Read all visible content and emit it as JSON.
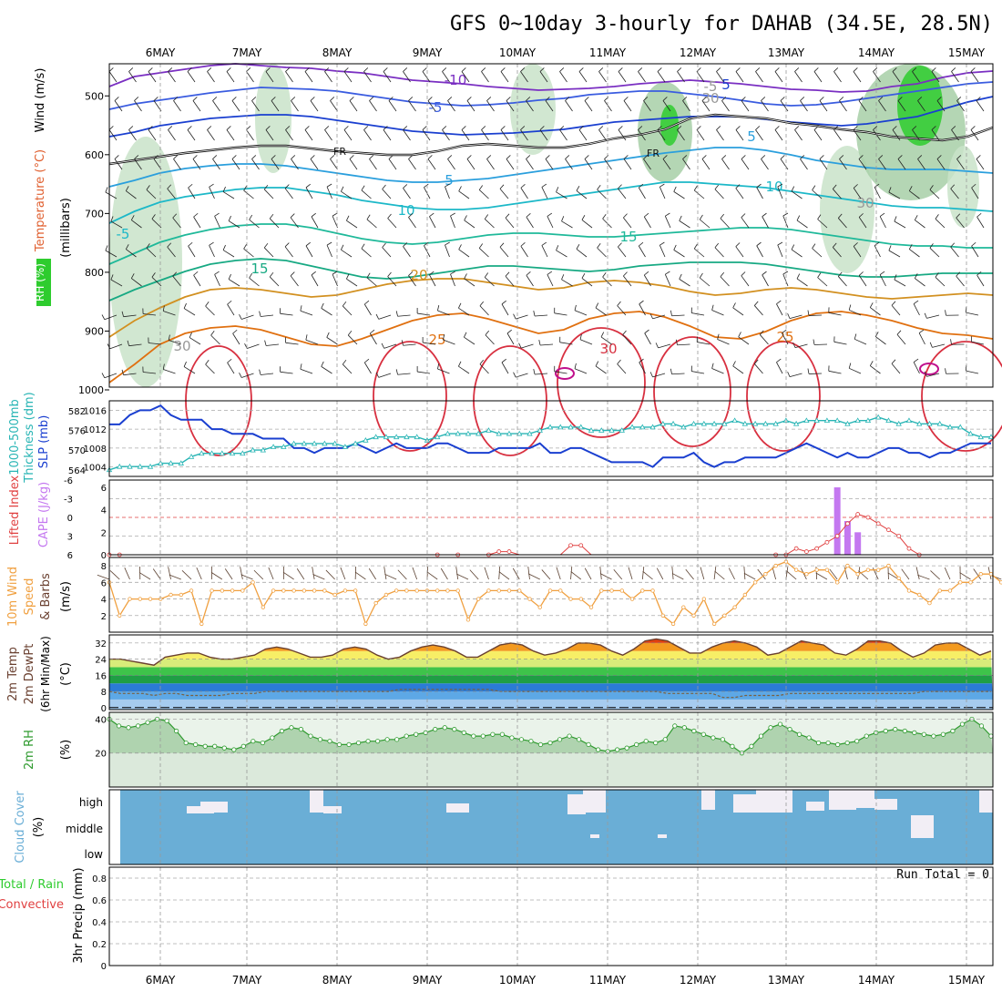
{
  "title": "GFS 0~10day 3-hourly for DAHAB (34.5E, 28.5N)",
  "dates": [
    "6MAY",
    "7MAY",
    "8MAY",
    "9MAY",
    "10MAY",
    "11MAY",
    "12MAY",
    "13MAY",
    "14MAY",
    "15MAY"
  ],
  "colors": {
    "rh_fill": "#c9e3c9",
    "rh_fill2": "#a7cfa7",
    "rh_green": "#2ecc2e",
    "slp": "#1a3fd0",
    "thick": "#29b5b5",
    "cape": "#c478f0",
    "li": "#e04040",
    "wind": "#f0a040",
    "cloud": "#6aaed6",
    "rh2m": "#2e9a2e"
  },
  "panels": {
    "upper": {
      "label_rh": "RH (%)",
      "label_temp": "Temperature (°C)",
      "label_wind": "Wind (m/s)",
      "label_mb": "(millibars)",
      "yticks": [
        "500",
        "600",
        "700",
        "800",
        "900",
        "1000"
      ],
      "contour_labels": [
        "-10",
        "-5",
        "5",
        "FR",
        "FR",
        "-5",
        "5",
        "10",
        "15",
        "15",
        "20",
        "25",
        "30",
        "25",
        "5",
        "10",
        "30",
        "30",
        "30",
        "-5"
      ]
    },
    "slp": {
      "label_left": "1000-500mb",
      "label_left2": "Thickness (dm)",
      "label_right": "SLP (mb)",
      "yticks_left": [
        "582",
        "576",
        "570",
        "564"
      ],
      "yticks_right": [
        "1016",
        "1012",
        "1008",
        "1004"
      ]
    },
    "cape": {
      "label_left": "Lifted Index",
      "label_right": "CAPE (J/kg)",
      "yticks_left": [
        "-6",
        "-3",
        "0",
        "3",
        "6"
      ],
      "yticks_right": [
        "6",
        "4",
        "2",
        "0"
      ]
    },
    "wind": {
      "label1": "10m Wind",
      "label2": "Speed",
      "label3": "& Barbs",
      "label_unit": "(m/s)",
      "yticks": [
        "8",
        "6",
        "4",
        "2"
      ]
    },
    "temp": {
      "label1": "2m Temp",
      "label2": "2m DewPt",
      "label3": "(6hr Min/Max)",
      "label_unit": "(°C)",
      "yticks": [
        "32",
        "24",
        "16",
        "8",
        "0"
      ]
    },
    "rh": {
      "label1": "2m RH",
      "label_unit": "(%)",
      "yticks": [
        "40",
        "20"
      ]
    },
    "cloud": {
      "label1": "Cloud Cover",
      "label_unit": "(%)",
      "levels": [
        "high",
        "middle",
        "low"
      ]
    },
    "precip": {
      "label1": "Total / Rain",
      "label2": "Convective",
      "label3": "3hr Precip (mm)",
      "yticks": [
        "0.8",
        "0.6",
        "0.4",
        "0.2",
        "0"
      ],
      "run_total": "Run Total = 0"
    }
  },
  "chart_data": [
    {
      "type": "line",
      "title": "1000-500mb Thickness (dm) / SLP (mb)",
      "x_unit": "3-hourly steps from 5MAY 12Z",
      "series": [
        {
          "name": "SLP (mb)",
          "values": [
            1013,
            1013,
            1015,
            1016,
            1016,
            1017,
            1015,
            1014,
            1014,
            1014,
            1012,
            1012,
            1011,
            1011,
            1011,
            1010,
            1010,
            1010,
            1008,
            1008,
            1007,
            1008,
            1008,
            1008,
            1009,
            1008,
            1007,
            1008,
            1009,
            1008,
            1008,
            1008,
            1009,
            1009,
            1008,
            1007,
            1007,
            1007,
            1008,
            1008,
            1008,
            1008,
            1009,
            1007,
            1007,
            1008,
            1008,
            1007,
            1006,
            1005,
            1005,
            1005,
            1005,
            1004,
            1006,
            1006,
            1006,
            1007,
            1005,
            1004,
            1005,
            1005,
            1006,
            1006,
            1006,
            1006,
            1007,
            1008,
            1009,
            1008,
            1007,
            1006,
            1007,
            1006,
            1006,
            1007,
            1008,
            1008,
            1007,
            1007,
            1006,
            1007,
            1007,
            1008,
            1009,
            1009,
            1009
          ]
        },
        {
          "name": "1000-500mb Thickness (dm)",
          "values": [
            564,
            565,
            565,
            565,
            565,
            566,
            566,
            566,
            568,
            569,
            569,
            569,
            569,
            569,
            570,
            570,
            571,
            571,
            572,
            572,
            572,
            572,
            572,
            571,
            572,
            573,
            574,
            574,
            574,
            574,
            574,
            573,
            574,
            575,
            575,
            575,
            575,
            576,
            575,
            575,
            575,
            575,
            576,
            577,
            577,
            577,
            577,
            576,
            576,
            576,
            576,
            577,
            577,
            577,
            578,
            578,
            577,
            578,
            578,
            578,
            578,
            579,
            578,
            578,
            578,
            578,
            579,
            578,
            579,
            579,
            579,
            579,
            578,
            579,
            579,
            580,
            579,
            578,
            579,
            578,
            578,
            578,
            577,
            577,
            575,
            574,
            574
          ]
        }
      ]
    },
    {
      "type": "bar",
      "title": "CAPE (J/kg) / Lifted Index",
      "series": [
        {
          "name": "CAPE (J/kg)",
          "x_steps": [
            71,
            72,
            73
          ],
          "values": [
            6,
            3,
            2
          ]
        },
        {
          "name": "Lifted Index",
          "values": [
            6,
            6.5,
            7,
            7,
            7,
            7,
            7,
            7,
            7,
            7,
            7,
            7,
            7,
            7,
            7,
            7,
            7,
            7,
            7,
            7,
            7,
            7,
            7,
            7,
            7,
            7,
            7,
            7,
            7,
            7,
            7,
            7,
            6.5,
            7,
            6.5,
            7,
            7,
            6.5,
            5.5,
            5.5,
            7,
            7,
            7,
            7,
            7,
            4.5,
            4.5,
            7,
            7,
            7,
            7,
            7,
            7,
            7,
            7,
            7,
            7,
            7,
            7,
            7,
            7,
            7,
            7,
            7,
            7,
            6.5,
            6,
            5,
            5.5,
            5,
            4,
            3,
            1,
            -0.5,
            0,
            1,
            2,
            3,
            5,
            6
          ]
        }
      ]
    },
    {
      "type": "line",
      "title": "10m Wind Speed (m/s)",
      "values": [
        6,
        2,
        4,
        4,
        4,
        4,
        4.5,
        4.5,
        5,
        1,
        5,
        5,
        5,
        5,
        6,
        3,
        5,
        5,
        5,
        5,
        5,
        5,
        4.5,
        5,
        5,
        1,
        3.5,
        4.5,
        5,
        5,
        5,
        5,
        5,
        5,
        5,
        1.5,
        4,
        5,
        5,
        5,
        5,
        4,
        3,
        5,
        5,
        4,
        4,
        3,
        5,
        5,
        5,
        4,
        5,
        5,
        2,
        1,
        3,
        2,
        4,
        1,
        2,
        3,
        4.5,
        6,
        7,
        8,
        8.5,
        7.5,
        7,
        7.5,
        7.5,
        6,
        8,
        7,
        7.5,
        7.5,
        8,
        6.5,
        5,
        4.5,
        3.5,
        5,
        5,
        6,
        6,
        7,
        7,
        6,
        6,
        6.5,
        7
      ]
    },
    {
      "type": "area",
      "title": "2m Temp / 2m DewPt (°C)",
      "series": [
        {
          "name": "2m Temp",
          "values": [
            24,
            24,
            23,
            22,
            21,
            25,
            26,
            27,
            27,
            25,
            24,
            24,
            25,
            26,
            29,
            30,
            29,
            27,
            25,
            25,
            26,
            29,
            30,
            29,
            26,
            24,
            25,
            28,
            30,
            31,
            30,
            28,
            25,
            25,
            28,
            31,
            32,
            31,
            28,
            26,
            27,
            29,
            32,
            32,
            31,
            28,
            26,
            29,
            33,
            34,
            33,
            30,
            27,
            27,
            30,
            32,
            33,
            32,
            30,
            26,
            27,
            30,
            33,
            32,
            31,
            27,
            26,
            29,
            33,
            33,
            32,
            28,
            25,
            27,
            31,
            32,
            32,
            29,
            26,
            28
          ]
        },
        {
          "name": "2m DewPt",
          "values": [
            8,
            7,
            7,
            7,
            6,
            7,
            7,
            6,
            6,
            6,
            6,
            7,
            7,
            7,
            8,
            8,
            8,
            8,
            8,
            8,
            8,
            8,
            8,
            8,
            8,
            8,
            9,
            9,
            9,
            9,
            9,
            9,
            9,
            9,
            9,
            8,
            8,
            8,
            8,
            8,
            8,
            8,
            8,
            8,
            8,
            8,
            8,
            8,
            8,
            8,
            7,
            7,
            7,
            7,
            7,
            5,
            5,
            6,
            6,
            6,
            6,
            7,
            7,
            7,
            7,
            7,
            7,
            7,
            7,
            7,
            7,
            7,
            7,
            8,
            8,
            8,
            8,
            8,
            8,
            8
          ]
        }
      ]
    },
    {
      "type": "area",
      "title": "2m RH (%)",
      "values": [
        40,
        36,
        35,
        36,
        38,
        40,
        39,
        33,
        26,
        25,
        24,
        24,
        23,
        22,
        24,
        27,
        26,
        29,
        33,
        35,
        34,
        30,
        28,
        27,
        25,
        25,
        26,
        27,
        27,
        28,
        28,
        30,
        31,
        32,
        34,
        35,
        34,
        32,
        30,
        30,
        31,
        31,
        29,
        28,
        27,
        25,
        26,
        28,
        30,
        28,
        25,
        22,
        21,
        22,
        23,
        25,
        27,
        26,
        28,
        36,
        35,
        33,
        31,
        29,
        28,
        24,
        20,
        24,
        30,
        35,
        37,
        34,
        31,
        29,
        26,
        26,
        25,
        26,
        27,
        30,
        32,
        33,
        34,
        33,
        32,
        31,
        30,
        31,
        33,
        37,
        40,
        36,
        30
      ]
    },
    {
      "type": "bar",
      "title": "3hr Precip (mm)",
      "values": [],
      "ylim": [
        0,
        0.9
      ]
    }
  ]
}
